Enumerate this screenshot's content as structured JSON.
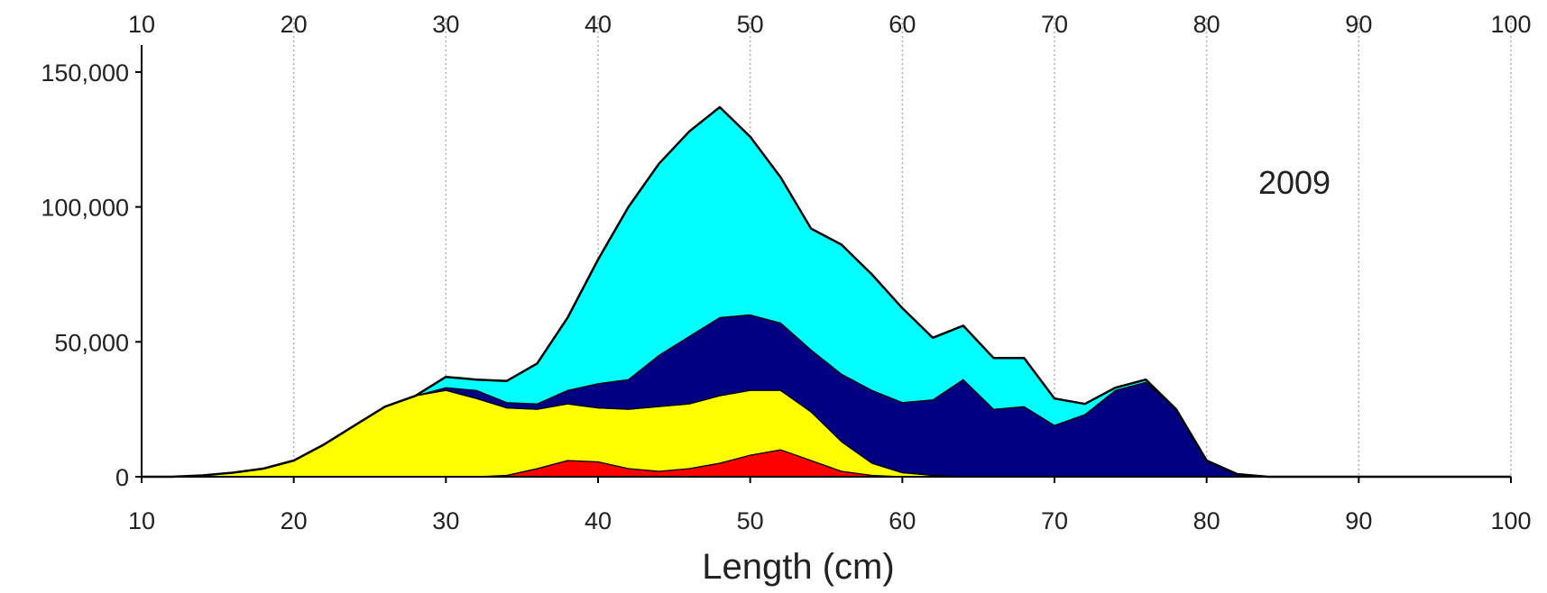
{
  "chart_data": {
    "type": "area",
    "stacked": true,
    "title": "",
    "xlabel": "Length (cm)",
    "ylabel": "",
    "xlim": [
      10,
      100
    ],
    "ylim": [
      0,
      160000
    ],
    "x_ticks": [
      10,
      20,
      30,
      40,
      50,
      60,
      70,
      80,
      90,
      100
    ],
    "x_tick_labels": [
      "10",
      "20",
      "30",
      "40",
      "50",
      "60",
      "70",
      "80",
      "90",
      "100"
    ],
    "top_tick_labels": [
      "10",
      "20",
      "30",
      "40",
      "50",
      "60",
      "70",
      "80",
      "90",
      "100"
    ],
    "y_ticks": [
      0,
      50000,
      100000,
      150000
    ],
    "y_tick_labels": [
      "0",
      "50,000",
      "100,000",
      "150,000"
    ],
    "grid": {
      "x": true,
      "y": false,
      "style": "dotted"
    },
    "annotation": "2009",
    "x": [
      10,
      12,
      14,
      16,
      18,
      20,
      22,
      24,
      26,
      28,
      30,
      32,
      34,
      36,
      38,
      40,
      42,
      44,
      46,
      48,
      50,
      52,
      54,
      56,
      58,
      60,
      62,
      64,
      66,
      68,
      70,
      72,
      74,
      76,
      78,
      80,
      82,
      84,
      86,
      88,
      90,
      92,
      94,
      96,
      98,
      100
    ],
    "series": [
      {
        "color": "#ff0000",
        "values": [
          0,
          0,
          0,
          0,
          0,
          0,
          0,
          0,
          0,
          0,
          0,
          0,
          500,
          3000,
          6000,
          5500,
          3000,
          2000,
          3000,
          5000,
          8000,
          10000,
          6000,
          2000,
          500,
          0,
          0,
          0,
          0,
          0,
          0,
          0,
          0,
          0,
          0,
          0,
          0,
          0,
          0,
          0,
          0,
          0,
          0,
          0,
          0,
          0
        ]
      },
      {
        "color": "#ffff00",
        "values": [
          0,
          0,
          500,
          1500,
          3000,
          6000,
          12000,
          19000,
          26000,
          30000,
          32000,
          29000,
          25000,
          22000,
          21000,
          20000,
          22000,
          24000,
          24000,
          25000,
          24000,
          22000,
          18000,
          11000,
          4500,
          1500,
          500,
          0,
          0,
          0,
          0,
          0,
          0,
          0,
          0,
          0,
          0,
          0,
          0,
          0,
          0,
          0,
          0,
          0,
          0,
          0
        ]
      },
      {
        "color": "#000080",
        "values": [
          0,
          0,
          0,
          0,
          0,
          0,
          0,
          0,
          0,
          0,
          1000,
          3000,
          2000,
          2000,
          5000,
          9000,
          11000,
          19000,
          25000,
          29000,
          28000,
          25000,
          23000,
          25000,
          27000,
          26000,
          28000,
          36000,
          25000,
          26000,
          19000,
          23000,
          32000,
          35000,
          25000,
          6000,
          1000,
          0,
          0,
          0,
          0,
          0,
          0,
          0,
          0,
          0
        ]
      },
      {
        "color": "#00ffff",
        "values": [
          0,
          0,
          0,
          0,
          0,
          0,
          0,
          0,
          0,
          0,
          4000,
          4000,
          8000,
          15000,
          27000,
          46000,
          64000,
          71000,
          76000,
          78000,
          66000,
          54000,
          45000,
          48000,
          43000,
          35000,
          23000,
          20000,
          19000,
          18000,
          10000,
          4000,
          1000,
          1000,
          0,
          0,
          0,
          0,
          0,
          0,
          0,
          0,
          0,
          0,
          0,
          0
        ]
      }
    ]
  }
}
